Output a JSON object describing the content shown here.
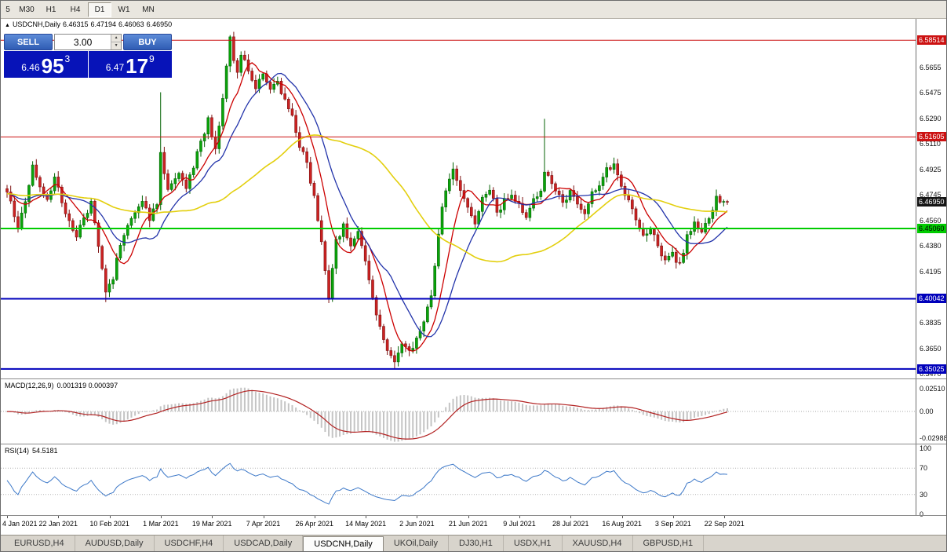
{
  "toolbar": {
    "timeframes": [
      {
        "label": "5",
        "active": false
      },
      {
        "label": "M30",
        "active": false
      },
      {
        "label": "H1",
        "active": false
      },
      {
        "label": "H4",
        "active": false
      },
      {
        "label": "D1",
        "active": true
      },
      {
        "label": "W1",
        "active": false
      },
      {
        "label": "MN",
        "active": false
      }
    ]
  },
  "chart_header": {
    "collapse_icon": "▲",
    "symbol_period": "USDCNH,Daily",
    "open": "6.46315",
    "high": "6.47194",
    "low": "6.46063",
    "close": "6.46950"
  },
  "one_click": {
    "sell_label": "SELL",
    "buy_label": "BUY",
    "volume": "3.00",
    "spinner_up_icon": "▲",
    "spinner_down_icon": "▼",
    "sell_price": {
      "prefix": "6.46",
      "big": "95",
      "sup": "3"
    },
    "buy_price": {
      "prefix": "6.47",
      "big": "17",
      "sup": "9"
    }
  },
  "price_axis": {
    "labels": [
      "6.5655",
      "6.5475",
      "6.5290",
      "6.5110",
      "6.4925",
      "6.4745",
      "6.4560",
      "6.4380",
      "6.4195",
      "6.3835",
      "6.3650",
      "6.3470"
    ],
    "badges": [
      {
        "text": "6.58514",
        "bg": "#cc1111",
        "fg": "#ffffff",
        "value": 6.58514
      },
      {
        "text": "6.51605",
        "bg": "#cc1111",
        "fg": "#ffffff",
        "value": 6.51605
      },
      {
        "text": "6.46950",
        "bg": "#151515",
        "fg": "#ffffff",
        "value": 6.4695
      },
      {
        "text": "6.45060",
        "bg": "#00cc00",
        "fg": "#000000",
        "value": 6.4506
      },
      {
        "text": "6.40042",
        "bg": "#0000bb",
        "fg": "#ffffff",
        "value": 6.40042
      },
      {
        "text": "6.35025",
        "bg": "#0000bb",
        "fg": "#ffffff",
        "value": 6.35025
      }
    ]
  },
  "indicators": {
    "macd": {
      "label": "MACD(12,26,9)",
      "values": "0.001319 0.000397",
      "axis": [
        {
          "text": "0.02510",
          "value": 0.0251
        },
        {
          "text": "0.00",
          "value": 0
        },
        {
          "text": "-0.02988",
          "value": -0.02988
        }
      ]
    },
    "rsi": {
      "label": "RSI(14)",
      "value": "54.5181",
      "axis": [
        {
          "text": "100",
          "value": 100
        },
        {
          "text": "70",
          "value": 70
        },
        {
          "text": "30",
          "value": 30
        },
        {
          "text": "0",
          "value": 0
        }
      ]
    }
  },
  "time_axis": {
    "dates": [
      "4 Jan 2021",
      "22 Jan 2021",
      "10 Feb 2021",
      "1 Mar 2021",
      "19 Mar 2021",
      "7 Apr 2021",
      "26 Apr 2021",
      "14 May 2021",
      "2 Jun 2021",
      "21 Jun 2021",
      "9 Jul 2021",
      "28 Jul 2021",
      "16 Aug 2021",
      "3 Sep 2021",
      "22 Sep 2021"
    ]
  },
  "tabs": [
    {
      "label": "EURUSD,H4",
      "active": false
    },
    {
      "label": "AUDUSD,Daily",
      "active": false
    },
    {
      "label": "USDCHF,H4",
      "active": false
    },
    {
      "label": "USDCAD,Daily",
      "active": false
    },
    {
      "label": "USDCNH,Daily",
      "active": true
    },
    {
      "label": "UKOil,Daily",
      "active": false
    },
    {
      "label": "DJ30,H1",
      "active": false
    },
    {
      "label": "USDX,H1",
      "active": false
    },
    {
      "label": "XAUUSD,H4",
      "active": false
    },
    {
      "label": "GBPUSD,H1",
      "active": false
    }
  ],
  "chart_data": {
    "type": "candlestick",
    "symbol": "USDCNH",
    "period": "Daily",
    "candle_count": 198,
    "price_range": [
      6.344,
      6.601
    ],
    "last_price": 6.4695,
    "bull_color": "#0aa50a",
    "bear_color": "#cc2222",
    "horizontal_levels": [
      {
        "price": 6.58514,
        "color": "#cc1111",
        "width": 1
      },
      {
        "price": 6.51605,
        "color": "#cc1111",
        "width": 1
      },
      {
        "price": 6.4506,
        "color": "#00cc00",
        "width": 2
      },
      {
        "price": 6.40042,
        "color": "#0000bb",
        "width": 2
      },
      {
        "price": 6.35025,
        "color": "#0000bb",
        "width": 2
      }
    ],
    "ma_lines": [
      {
        "period": 8,
        "color": "#cc0000"
      },
      {
        "period": 16,
        "color": "#2233aa"
      },
      {
        "period": 50,
        "color": "#e3cf0e"
      }
    ],
    "waypoints": [
      [
        0,
        6.478
      ],
      [
        2,
        6.46
      ],
      [
        3,
        6.452
      ],
      [
        5,
        6.47
      ],
      [
        7,
        6.496
      ],
      [
        9,
        6.482
      ],
      [
        11,
        6.47
      ],
      [
        13,
        6.486
      ],
      [
        15,
        6.47
      ],
      [
        17,
        6.456
      ],
      [
        19,
        6.444
      ],
      [
        21,
        6.458
      ],
      [
        23,
        6.468
      ],
      [
        25,
        6.44
      ],
      [
        27,
        6.405
      ],
      [
        29,
        6.415
      ],
      [
        31,
        6.44
      ],
      [
        33,
        6.452
      ],
      [
        35,
        6.462
      ],
      [
        37,
        6.47
      ],
      [
        39,
        6.458
      ],
      [
        41,
        6.468
      ],
      [
        42,
        6.505
      ],
      [
        43,
        6.49
      ],
      [
        44,
        6.478
      ],
      [
        45,
        6.482
      ],
      [
        47,
        6.49
      ],
      [
        49,
        6.48
      ],
      [
        51,
        6.495
      ],
      [
        53,
        6.512
      ],
      [
        55,
        6.528
      ],
      [
        57,
        6.506
      ],
      [
        58,
        6.522
      ],
      [
        59,
        6.545
      ],
      [
        60,
        6.568
      ],
      [
        61,
        6.586
      ],
      [
        62,
        6.572
      ],
      [
        63,
        6.56
      ],
      [
        64,
        6.576
      ],
      [
        66,
        6.565
      ],
      [
        68,
        6.552
      ],
      [
        70,
        6.562
      ],
      [
        72,
        6.548
      ],
      [
        74,
        6.556
      ],
      [
        76,
        6.542
      ],
      [
        78,
        6.53
      ],
      [
        80,
        6.51
      ],
      [
        82,
        6.498
      ],
      [
        84,
        6.472
      ],
      [
        86,
        6.44
      ],
      [
        88,
        6.402
      ],
      [
        90,
        6.442
      ],
      [
        92,
        6.452
      ],
      [
        94,
        6.44
      ],
      [
        96,
        6.45
      ],
      [
        98,
        6.428
      ],
      [
        100,
        6.402
      ],
      [
        102,
        6.38
      ],
      [
        104,
        6.364
      ],
      [
        106,
        6.354
      ],
      [
        108,
        6.368
      ],
      [
        110,
        6.362
      ],
      [
        112,
        6.372
      ],
      [
        114,
        6.385
      ],
      [
        116,
        6.402
      ],
      [
        118,
        6.448
      ],
      [
        119,
        6.468
      ],
      [
        120,
        6.478
      ],
      [
        122,
        6.492
      ],
      [
        124,
        6.48
      ],
      [
        126,
        6.465
      ],
      [
        128,
        6.455
      ],
      [
        130,
        6.472
      ],
      [
        132,
        6.48
      ],
      [
        134,
        6.462
      ],
      [
        136,
        6.47
      ],
      [
        138,
        6.476
      ],
      [
        140,
        6.468
      ],
      [
        142,
        6.458
      ],
      [
        144,
        6.47
      ],
      [
        146,
        6.478
      ],
      [
        147,
        6.49
      ],
      [
        148,
        6.488
      ],
      [
        150,
        6.478
      ],
      [
        152,
        6.468
      ],
      [
        154,
        6.478
      ],
      [
        156,
        6.47
      ],
      [
        158,
        6.462
      ],
      [
        160,
        6.475
      ],
      [
        162,
        6.482
      ],
      [
        164,
        6.492
      ],
      [
        166,
        6.498
      ],
      [
        168,
        6.482
      ],
      [
        170,
        6.47
      ],
      [
        172,
        6.455
      ],
      [
        174,
        6.445
      ],
      [
        176,
        6.452
      ],
      [
        178,
        6.438
      ],
      [
        180,
        6.428
      ],
      [
        182,
        6.432
      ],
      [
        184,
        6.425
      ],
      [
        186,
        6.445
      ],
      [
        188,
        6.455
      ],
      [
        190,
        6.448
      ],
      [
        192,
        6.458
      ],
      [
        194,
        6.472
      ],
      [
        196,
        6.468
      ],
      [
        197,
        6.4695
      ]
    ],
    "spikes": [
      {
        "i": 27,
        "low": 6.398
      },
      {
        "i": 42,
        "high": 6.548
      },
      {
        "i": 61,
        "high": 6.587
      },
      {
        "i": 88,
        "low": 6.398
      },
      {
        "i": 106,
        "low": 6.3505
      },
      {
        "i": 147,
        "high": 6.529
      }
    ],
    "indicator_panes": {
      "macd": {
        "params": [
          12,
          26,
          9
        ],
        "histogram_color": "#c4c4c4",
        "signal_color": "#b22222"
      },
      "rsi": {
        "period": 14,
        "color": "#3c78c8",
        "levels": [
          30,
          70
        ]
      }
    }
  }
}
